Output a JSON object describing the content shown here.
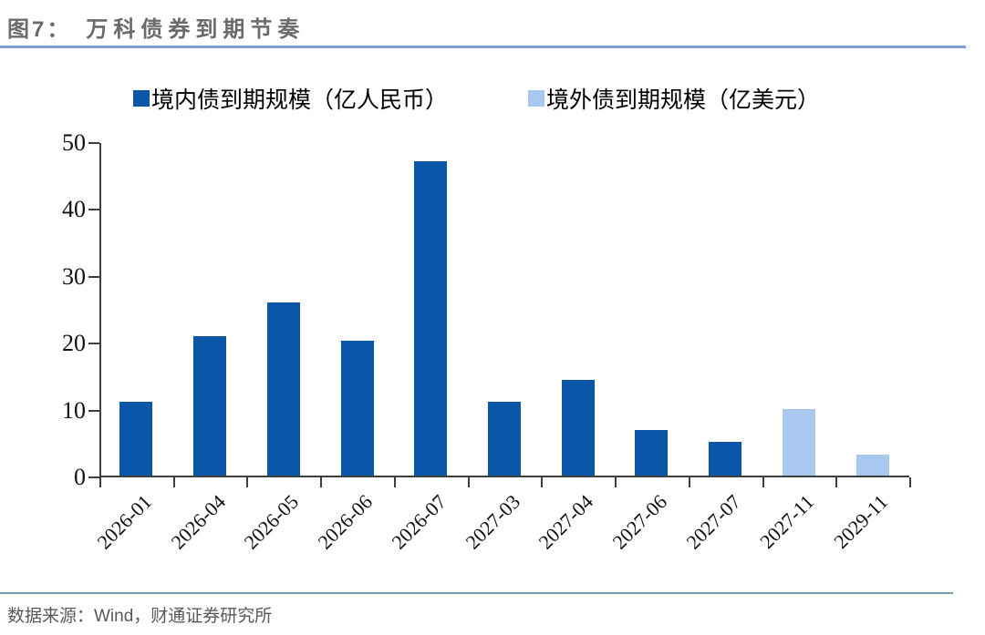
{
  "header": {
    "fig_label": "图7：",
    "title": "万科债券到期节奏"
  },
  "footer": {
    "source": "数据来源：Wind，财通证券研究所"
  },
  "colors": {
    "domestic_bar": "#0B56A8",
    "overseas_bar": "#A9C8EF",
    "header_rule": "#7d9fd3",
    "footer_rule": "#7b95a9",
    "axis": "#3f3f3f"
  },
  "chart_data": {
    "type": "bar",
    "title": "图7： 万科债券到期节奏",
    "categories": [
      "2026-01",
      "2026-04",
      "2026-05",
      "2026-06",
      "2026-07",
      "2027-03",
      "2027-04",
      "2027-06",
      "2027-07",
      "2027-11",
      "2029-11"
    ],
    "series": [
      {
        "name": "境内债到期规模（亿人民币）",
        "color": "#0B56A8",
        "values": [
          11.1,
          20.9,
          25.9,
          20.2,
          47,
          11.1,
          14.3,
          6.8,
          5.1,
          null,
          null
        ]
      },
      {
        "name": "境外债到期规模（亿美元）",
        "color": "#A9C8EF",
        "values": [
          null,
          null,
          null,
          null,
          null,
          null,
          null,
          null,
          null,
          10,
          3.1
        ]
      }
    ],
    "xlabel": "",
    "ylabel": "",
    "ylim": [
      0,
      50
    ],
    "yticks": [
      0,
      10,
      20,
      30,
      40,
      50
    ],
    "grid": false,
    "legend_position": "top"
  }
}
